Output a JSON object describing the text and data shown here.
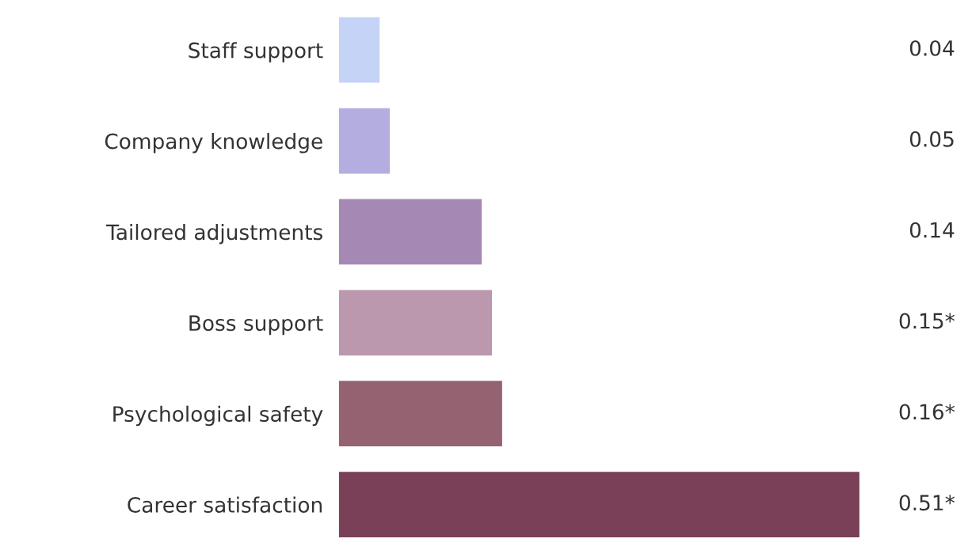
{
  "chart_data": {
    "type": "bar",
    "orientation": "horizontal",
    "categories": [
      "Staff support",
      "Company knowledge",
      "Tailored adjustments",
      "Boss support",
      "Psychological safety",
      "Career satisfaction"
    ],
    "values": [
      0.04,
      0.05,
      0.14,
      0.15,
      0.16,
      0.51
    ],
    "colors": [
      "#c5d3f7",
      "#b4ade0",
      "#a688b5",
      "#bb98ad",
      "#956272",
      "#7a4057"
    ],
    "value_labels": [
      "0.04",
      "0.05",
      "0.14",
      "0.15*",
      "0.16*",
      "0.51*"
    ],
    "grid": false,
    "legend": false
  }
}
